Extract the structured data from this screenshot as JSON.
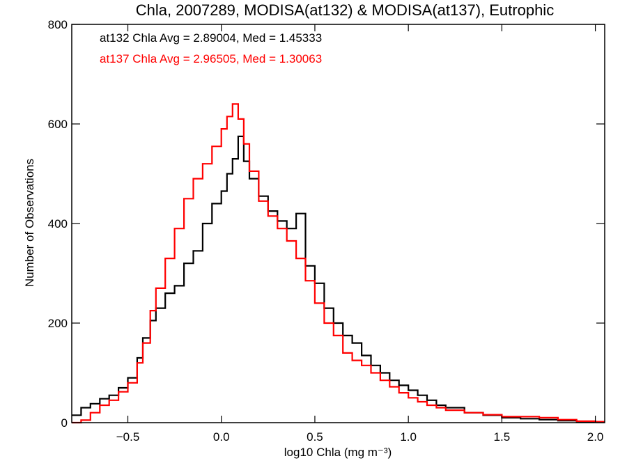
{
  "chart_data": {
    "type": "line",
    "style": "step histogram",
    "title": "Chla, 2007289, MODISA(at132) & MODISA(at137), Eutrophic",
    "xlabel": "log10 Chla (mg m⁻³)",
    "ylabel": "Number of Observations",
    "xlim": [
      -0.8,
      2.05
    ],
    "ylim": [
      0,
      800
    ],
    "x_ticks": [
      -0.5,
      0.0,
      0.5,
      1.0,
      1.5,
      2.0
    ],
    "x_tick_labels": [
      "−0.5",
      "0.0",
      "0.5",
      "1.0",
      "1.5",
      "2.0"
    ],
    "y_ticks": [
      0,
      200,
      400,
      600,
      800
    ],
    "y_tick_labels": [
      "0",
      "200",
      "400",
      "600",
      "800"
    ],
    "grid": false,
    "annotations": [
      {
        "text": "at132 Chla Avg = 2.89004, Med = 1.45333",
        "color": "#000000"
      },
      {
        "text": "at137 Chla Avg = 2.96505, Med = 1.30063",
        "color": "#ff0000"
      }
    ],
    "series": [
      {
        "name": "at132",
        "color": "#000000",
        "points": [
          [
            -0.8,
            15
          ],
          [
            -0.75,
            30
          ],
          [
            -0.7,
            38
          ],
          [
            -0.65,
            48
          ],
          [
            -0.6,
            55
          ],
          [
            -0.55,
            70
          ],
          [
            -0.5,
            90
          ],
          [
            -0.45,
            130
          ],
          [
            -0.42,
            170
          ],
          [
            -0.38,
            205
          ],
          [
            -0.35,
            230
          ],
          [
            -0.3,
            260
          ],
          [
            -0.25,
            275
          ],
          [
            -0.2,
            320
          ],
          [
            -0.15,
            345
          ],
          [
            -0.1,
            400
          ],
          [
            -0.05,
            440
          ],
          [
            0.0,
            465
          ],
          [
            0.03,
            500
          ],
          [
            0.06,
            530
          ],
          [
            0.09,
            575
          ],
          [
            0.12,
            525
          ],
          [
            0.15,
            490
          ],
          [
            0.2,
            455
          ],
          [
            0.25,
            425
          ],
          [
            0.3,
            405
          ],
          [
            0.35,
            390
          ],
          [
            0.4,
            420
          ],
          [
            0.45,
            315
          ],
          [
            0.5,
            280
          ],
          [
            0.55,
            230
          ],
          [
            0.6,
            200
          ],
          [
            0.65,
            175
          ],
          [
            0.7,
            160
          ],
          [
            0.75,
            135
          ],
          [
            0.8,
            115
          ],
          [
            0.85,
            100
          ],
          [
            0.9,
            85
          ],
          [
            0.95,
            75
          ],
          [
            1.0,
            65
          ],
          [
            1.05,
            55
          ],
          [
            1.1,
            45
          ],
          [
            1.15,
            35
          ],
          [
            1.2,
            30
          ],
          [
            1.3,
            20
          ],
          [
            1.4,
            15
          ],
          [
            1.5,
            10
          ],
          [
            1.6,
            8
          ],
          [
            1.7,
            6
          ],
          [
            1.8,
            4
          ],
          [
            1.9,
            2
          ],
          [
            2.0,
            1
          ]
        ]
      },
      {
        "name": "at137",
        "color": "#ff0000",
        "points": [
          [
            -0.8,
            0
          ],
          [
            -0.75,
            5
          ],
          [
            -0.7,
            20
          ],
          [
            -0.65,
            35
          ],
          [
            -0.6,
            45
          ],
          [
            -0.55,
            62
          ],
          [
            -0.5,
            80
          ],
          [
            -0.45,
            120
          ],
          [
            -0.42,
            160
          ],
          [
            -0.38,
            225
          ],
          [
            -0.35,
            270
          ],
          [
            -0.3,
            330
          ],
          [
            -0.25,
            390
          ],
          [
            -0.2,
            450
          ],
          [
            -0.15,
            490
          ],
          [
            -0.1,
            520
          ],
          [
            -0.05,
            555
          ],
          [
            0.0,
            590
          ],
          [
            0.03,
            615
          ],
          [
            0.06,
            640
          ],
          [
            0.09,
            610
          ],
          [
            0.12,
            560
          ],
          [
            0.15,
            505
          ],
          [
            0.2,
            445
          ],
          [
            0.25,
            415
          ],
          [
            0.3,
            390
          ],
          [
            0.35,
            365
          ],
          [
            0.4,
            330
          ],
          [
            0.45,
            285
          ],
          [
            0.5,
            240
          ],
          [
            0.55,
            200
          ],
          [
            0.6,
            175
          ],
          [
            0.65,
            140
          ],
          [
            0.7,
            125
          ],
          [
            0.75,
            115
          ],
          [
            0.8,
            100
          ],
          [
            0.85,
            85
          ],
          [
            0.9,
            72
          ],
          [
            0.95,
            60
          ],
          [
            1.0,
            50
          ],
          [
            1.05,
            42
          ],
          [
            1.1,
            35
          ],
          [
            1.15,
            30
          ],
          [
            1.2,
            25
          ],
          [
            1.3,
            20
          ],
          [
            1.4,
            16
          ],
          [
            1.5,
            12
          ],
          [
            1.6,
            12
          ],
          [
            1.7,
            10
          ],
          [
            1.8,
            6
          ],
          [
            1.9,
            3
          ],
          [
            2.0,
            2
          ]
        ]
      }
    ]
  }
}
